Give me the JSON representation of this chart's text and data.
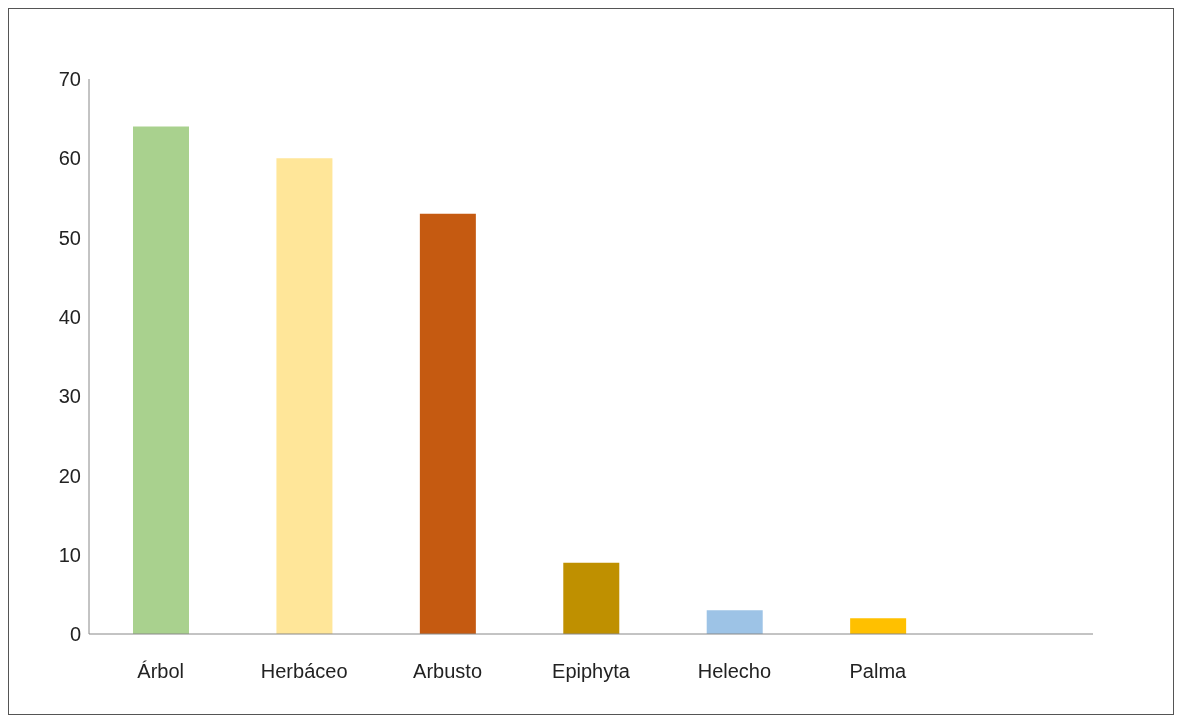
{
  "chart_data": {
    "type": "bar",
    "categories": [
      "Árbol",
      "Herbáceo",
      "Arbusto",
      "Epiphyta",
      "Helecho",
      "Palma",
      null
    ],
    "values": [
      64,
      60,
      53,
      9,
      3,
      2,
      null
    ],
    "colors": [
      "#a9d18e",
      "#ffe699",
      "#c55a11",
      "#bf9000",
      "#9dc3e6",
      "#ffc000",
      "#000000"
    ],
    "ylim": [
      0,
      70
    ],
    "yticks": [
      0,
      10,
      20,
      30,
      40,
      50,
      60,
      70
    ],
    "grid": false,
    "legend": false
  }
}
